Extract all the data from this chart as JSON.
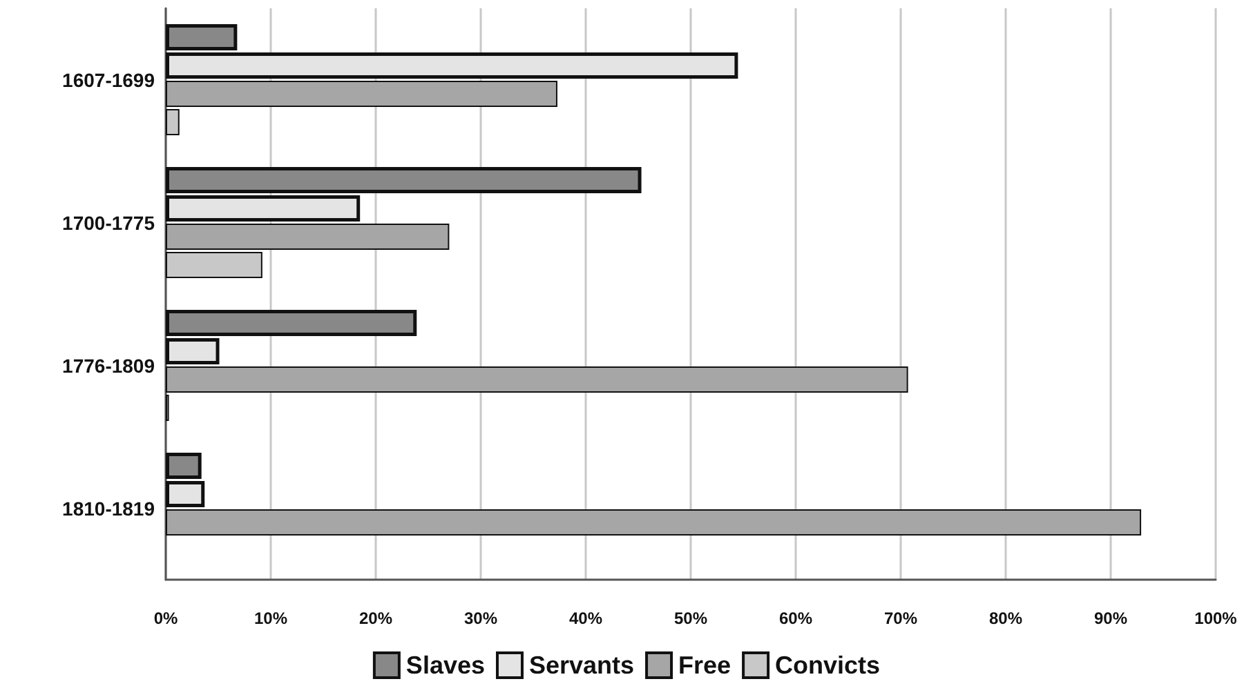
{
  "chart_data": {
    "type": "bar",
    "orientation": "horizontal",
    "categories": [
      "1607-1699",
      "1700-1775",
      "1776-1809",
      "1810-1819"
    ],
    "series": [
      {
        "name": "Slaves",
        "color": "#888888",
        "values": [
          6.8,
          45.3,
          23.9,
          3.4
        ]
      },
      {
        "name": "Servants",
        "color": "#e4e4e4",
        "values": [
          54.5,
          18.5,
          5.1,
          3.7
        ]
      },
      {
        "name": "Free",
        "color": "#a6a6a6",
        "values": [
          37.3,
          27.0,
          70.7,
          92.9
        ]
      },
      {
        "name": "Convicts",
        "color": "#c8c8c8",
        "values": [
          1.3,
          9.2,
          0.3,
          null
        ]
      }
    ],
    "xlim": [
      0,
      100
    ],
    "xticks": [
      {
        "value": 0,
        "label": "0%"
      },
      {
        "value": 10,
        "label": "10%"
      },
      {
        "value": 20,
        "label": "20%"
      },
      {
        "value": 30,
        "label": "30%"
      },
      {
        "value": 40,
        "label": "40%"
      },
      {
        "value": 50,
        "label": "50%"
      },
      {
        "value": 60,
        "label": "60%"
      },
      {
        "value": 70,
        "label": "70%"
      },
      {
        "value": 80,
        "label": "80%"
      },
      {
        "value": 90,
        "label": "90%"
      },
      {
        "value": 100,
        "label": "100%"
      }
    ],
    "grid": "x",
    "legend": "bottom"
  }
}
